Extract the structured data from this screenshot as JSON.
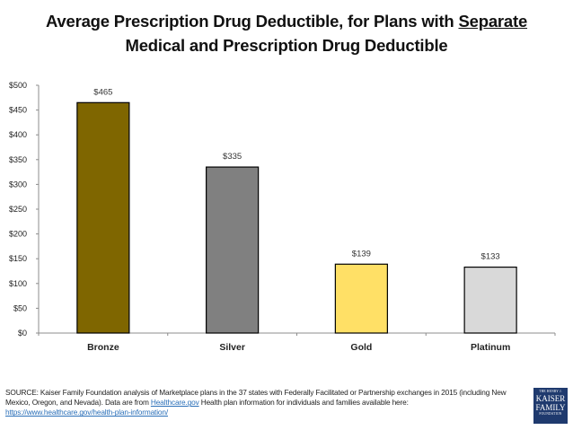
{
  "title": {
    "line1_prefix": "Average Prescription Drug Deductible, for Plans with ",
    "line1_underlined": "Separate",
    "line2": "Medical and Prescription Drug Deductible"
  },
  "chart_data": {
    "type": "bar",
    "title": "Average Prescription Drug Deductible, for Plans with Separate Medical and Prescription Drug Deductible",
    "xlabel": "",
    "ylabel": "",
    "categories": [
      "Bronze",
      "Silver",
      "Gold",
      "Platinum"
    ],
    "values": [
      465,
      335,
      139,
      133
    ],
    "data_labels": [
      "$465",
      "$335",
      "$139",
      "$133"
    ],
    "bar_colors": [
      "#7f6600",
      "#808080",
      "#ffe066",
      "#d9d9d9"
    ],
    "ylim": [
      0,
      500
    ],
    "yticks": [
      0,
      50,
      100,
      150,
      200,
      250,
      300,
      350,
      400,
      450,
      500
    ],
    "ytick_labels": [
      "$0",
      "$50",
      "$100",
      "$150",
      "$200",
      "$250",
      "$300",
      "$350",
      "$400",
      "$450",
      "$500"
    ],
    "grid": false,
    "legend": "none"
  },
  "source": {
    "text_part1": "SOURCE: Kaiser Family Foundation analysis of Marketplace plans in the 37 states with Federally Facilitated or Partnership exchanges in 2015 (including New Mexico, Oregon, and Nevada). Data are from ",
    "link1": "Healthcare.gov",
    "text_part2": " Health plan information for individuals and families available here: ",
    "link2": "https://www.healthcare.gov/health-plan-information/"
  },
  "logo": {
    "line1": "THE HENRY J.",
    "line2": "KAISER",
    "line3": "FAMILY",
    "line4": "FOUNDATION"
  }
}
